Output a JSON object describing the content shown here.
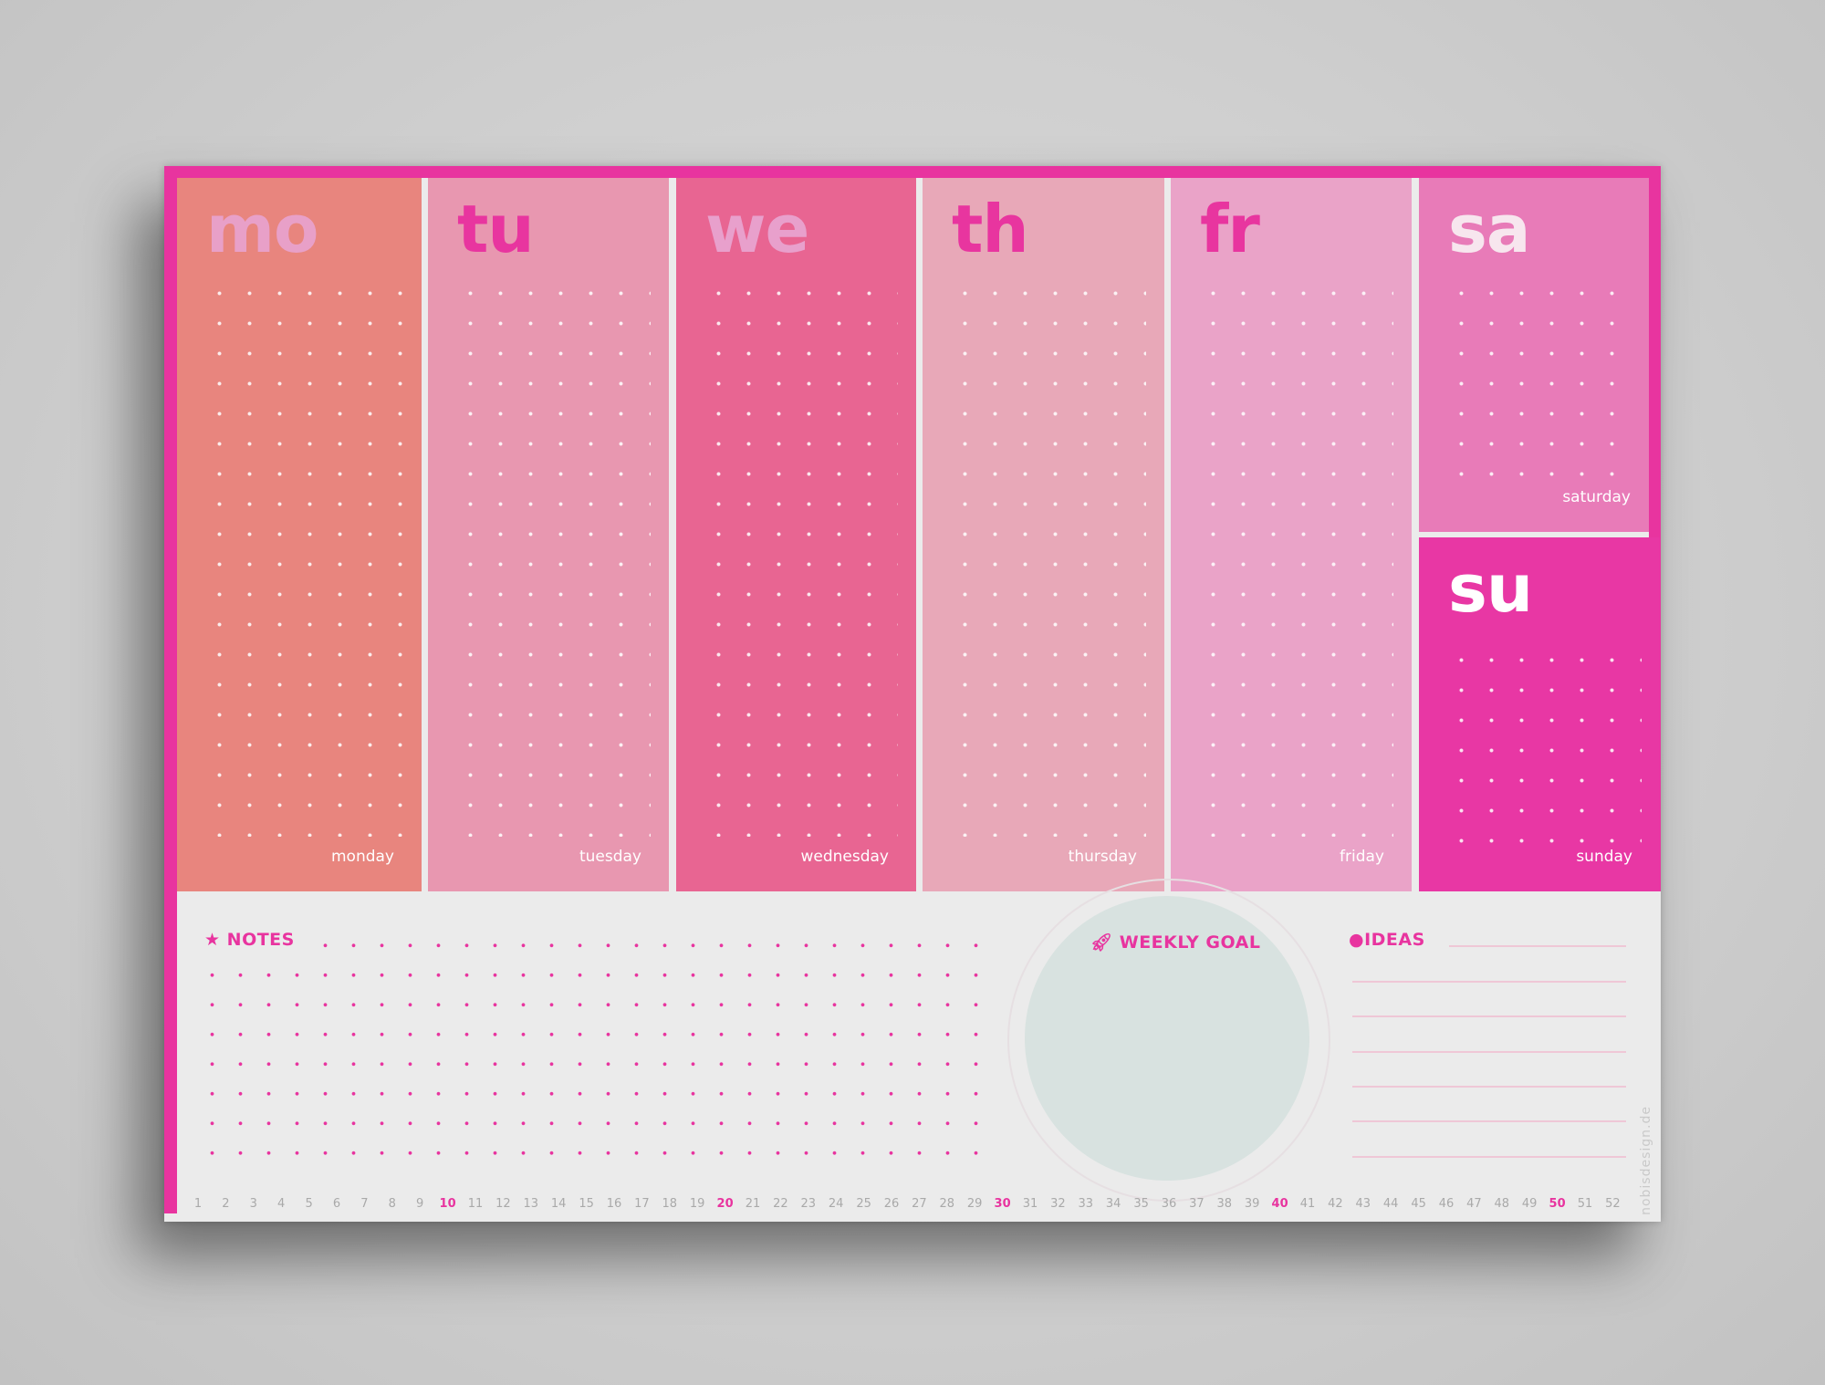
{
  "days": [
    {
      "abbr": "mo",
      "name": "monday",
      "bg": "#e8857e",
      "abbr_color": "#e8a0c8"
    },
    {
      "abbr": "tu",
      "name": "tuesday",
      "bg": "#e897b0",
      "abbr_color": "#e8359f"
    },
    {
      "abbr": "we",
      "name": "wednesday",
      "bg": "#e86592",
      "abbr_color": "#e8a0cc"
    },
    {
      "abbr": "th",
      "name": "thursday",
      "bg": "#e8a8b8",
      "abbr_color": "#e8359f"
    },
    {
      "abbr": "fr",
      "name": "friday",
      "bg": "#eaa3c8",
      "abbr_color": "#e8359f"
    },
    {
      "abbr": "sa",
      "name": "saturday",
      "bg": "#e87bb8",
      "abbr_color": "#f7e6ee"
    },
    {
      "abbr": "su",
      "name": "sunday",
      "bg": "#e837a4",
      "abbr_color": "#ffffff"
    }
  ],
  "sections": {
    "notes": "NOTES",
    "weekly_goal": "WEEKLY GOAL",
    "ideas": "IDEAS"
  },
  "icons": {
    "notes": "star-icon",
    "weekly_goal": "rocket-icon",
    "ideas": "lightbulb-icon"
  },
  "week_numbers": [
    1,
    2,
    3,
    4,
    5,
    6,
    7,
    8,
    9,
    10,
    11,
    12,
    13,
    14,
    15,
    16,
    17,
    18,
    19,
    20,
    21,
    22,
    23,
    24,
    25,
    26,
    27,
    28,
    29,
    30,
    31,
    32,
    33,
    34,
    35,
    36,
    37,
    38,
    39,
    40,
    41,
    42,
    43,
    44,
    45,
    46,
    47,
    48,
    49,
    50,
    51,
    52
  ],
  "highlighted_weeks": [
    10,
    20,
    30,
    40,
    50
  ],
  "brand": "nobisdesign.de",
  "accent": "#e8349f"
}
